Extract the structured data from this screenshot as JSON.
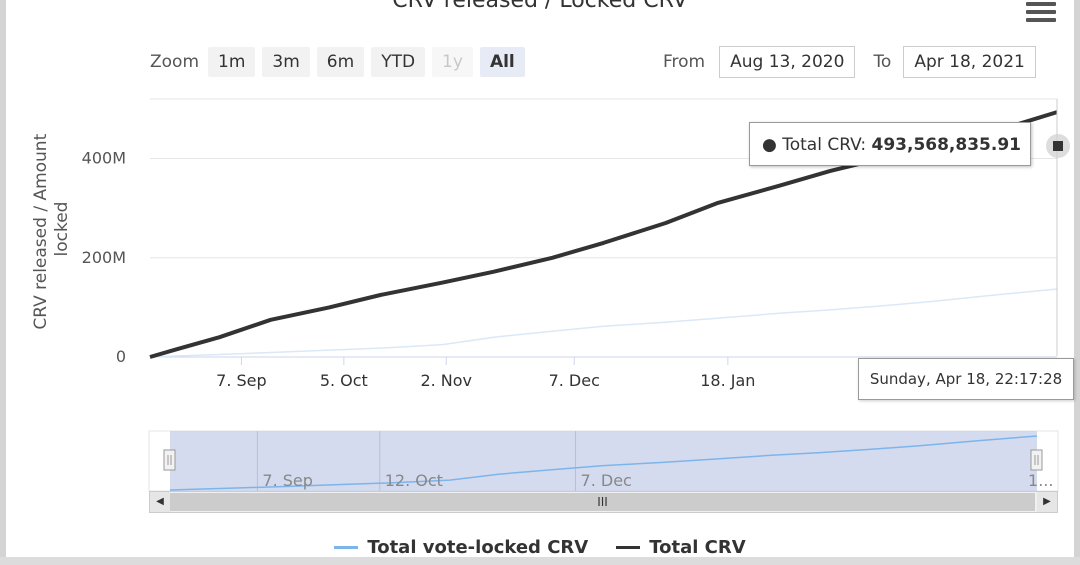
{
  "chart_data": {
    "type": "line",
    "title": "CRV released / Locked CRV",
    "ylabel": "CRV released / Amount locked",
    "ylim": [
      0,
      520000000
    ],
    "y_ticks": [
      "0",
      "200M",
      "400M"
    ],
    "x_tick_labels": [
      "7. Sep",
      "5. Oct",
      "2. Nov",
      "7. Dec",
      "18. Jan"
    ],
    "x_range": [
      "2020-08-13",
      "2021-04-18"
    ],
    "series": [
      {
        "name": "Total vote-locked CRV",
        "color": "#7cb5ec",
        "x": [
          "2020-08-13",
          "2020-08-20",
          "2020-09-01",
          "2020-09-15",
          "2020-10-01",
          "2020-10-15",
          "2020-11-01",
          "2020-11-15",
          "2020-12-01",
          "2020-12-15",
          "2021-01-01",
          "2021-01-15",
          "2021-02-01",
          "2021-02-15",
          "2021-03-01",
          "2021-03-15",
          "2021-04-01",
          "2021-04-18"
        ],
        "values": [
          0,
          2000000,
          5000000,
          9000000,
          14000000,
          18000000,
          25000000,
          40000000,
          52000000,
          62000000,
          70000000,
          78000000,
          88000000,
          95000000,
          103000000,
          112000000,
          125000000,
          137000000
        ]
      },
      {
        "name": "Total CRV",
        "color": "#333333",
        "x": [
          "2020-08-13",
          "2020-08-20",
          "2020-09-01",
          "2020-09-15",
          "2020-10-01",
          "2020-10-15",
          "2020-11-01",
          "2020-11-15",
          "2020-12-01",
          "2020-12-15",
          "2021-01-01",
          "2021-01-15",
          "2021-02-01",
          "2021-02-15",
          "2021-03-01",
          "2021-03-15",
          "2021-04-01",
          "2021-04-18"
        ],
        "values": [
          0,
          15000000,
          40000000,
          75000000,
          100000000,
          125000000,
          150000000,
          172000000,
          200000000,
          230000000,
          270000000,
          310000000,
          345000000,
          375000000,
          400000000,
          425000000,
          455000000,
          493568835.91
        ]
      }
    ],
    "navigator": {
      "x_tick_labels": [
        "7. Sep",
        "12. Oct",
        "7. Dec",
        "1..."
      ]
    },
    "grid": true,
    "legend_position": "bottom-center"
  },
  "ui": {
    "zoom_label": "Zoom",
    "zoom_buttons": [
      "1m",
      "3m",
      "6m",
      "YTD",
      "1y",
      "All"
    ],
    "from_label": "From",
    "from_value": "Aug 13, 2020",
    "to_label": "To",
    "to_value": "Apr 18, 2021",
    "tooltip_series": "Total CRV",
    "tooltip_value": "493,568,835.91",
    "date_tooltip": "Sunday, Apr 18, 22:17:28",
    "scrollbar_thumb_glyph": "III",
    "legend": [
      "Total vote-locked CRV",
      "Total CRV"
    ]
  }
}
